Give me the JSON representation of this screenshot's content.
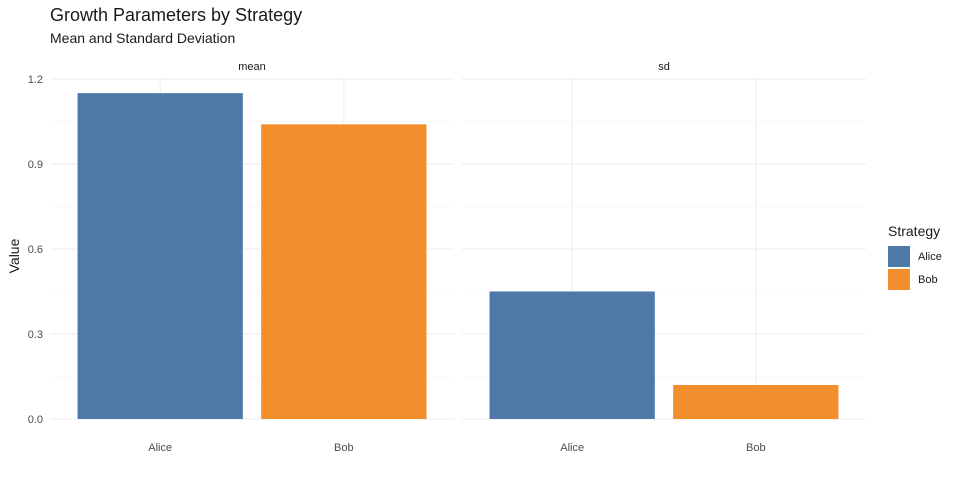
{
  "chart_data": {
    "type": "bar",
    "title": "Growth Parameters by Strategy",
    "subtitle": "Mean and Standard Deviation",
    "xlabel": "",
    "ylabel": "Value",
    "ylim": [
      0,
      1.2
    ],
    "yticks": [
      "0.0",
      "0.3",
      "0.6",
      "0.9",
      "1.2"
    ],
    "ytick_values": [
      0,
      0.3,
      0.6,
      0.9,
      1.2
    ],
    "grid": true,
    "legend": {
      "title": "Strategy",
      "position": "right"
    },
    "categories": [
      "Alice",
      "Bob"
    ],
    "colors": {
      "Alice": "#4E79A7",
      "Bob": "#F28E2B"
    },
    "facets": [
      {
        "name": "mean",
        "values": {
          "Alice": 1.15,
          "Bob": 1.04
        }
      },
      {
        "name": "sd",
        "values": {
          "Alice": 0.45,
          "Bob": 0.12
        }
      }
    ]
  }
}
